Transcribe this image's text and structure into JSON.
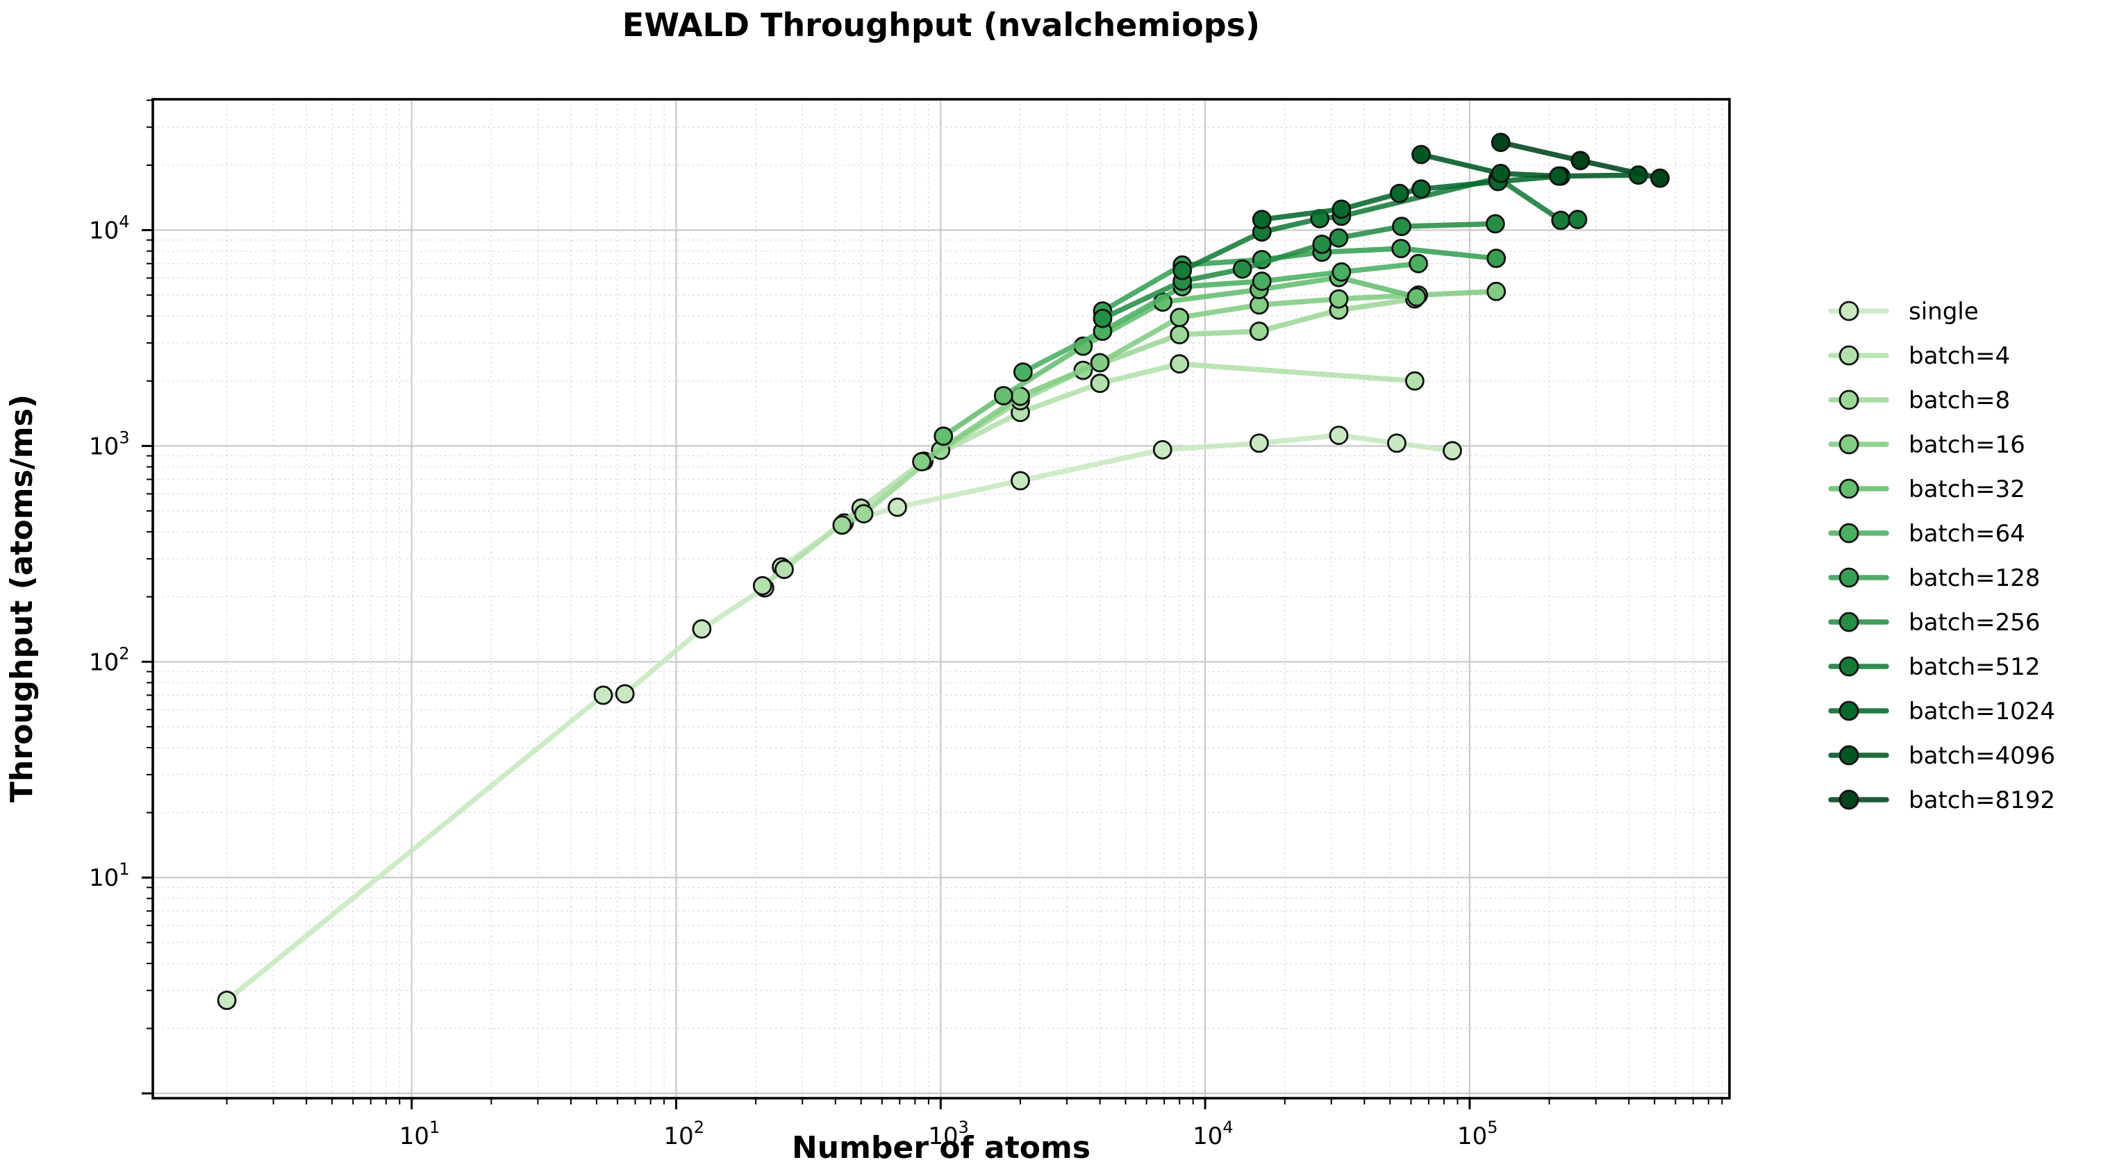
{
  "chart_data": {
    "type": "line",
    "title": "EWALD Throughput (nvalchemiops)",
    "xlabel": "Number of atoms",
    "ylabel": "Throughput (atoms/ms)",
    "x_scale": "log",
    "y_scale": "log",
    "xlim": [
      1.05,
      960000
    ],
    "ylim": [
      0.95,
      40400
    ],
    "x_tick_exponents": [
      1,
      2,
      3,
      4,
      5
    ],
    "y_tick_exponents": [
      1,
      2,
      3,
      4
    ],
    "grid": "major solid gray + minor dotted, log decades",
    "legend_position": "right of axes, frameless",
    "colors": {
      "grid_major": "#c9c9c9",
      "grid_minor": "#dadada",
      "spine": "#000000",
      "marker_edge": "#111111"
    },
    "series": [
      {
        "name": "single",
        "color": "#c7e8c0",
        "points": [
          [
            2,
            2.7
          ],
          [
            53,
            70
          ],
          [
            64,
            71
          ],
          [
            125,
            142
          ],
          [
            216,
            220
          ],
          [
            250,
            275
          ],
          [
            432,
            440
          ],
          [
            686,
            520
          ],
          [
            2000,
            690
          ],
          [
            6900,
            960
          ],
          [
            16000,
            1030
          ],
          [
            32000,
            1120
          ],
          [
            53000,
            1030
          ],
          [
            86000,
            950
          ]
        ]
      },
      {
        "name": "batch=4",
        "color": "#b3e0ac",
        "points": [
          [
            212,
            225
          ],
          [
            256,
            268
          ],
          [
            500,
            515
          ],
          [
            864,
            850
          ],
          [
            2000,
            1430
          ],
          [
            4000,
            1950
          ],
          [
            8000,
            2400
          ],
          [
            62000,
            2000
          ]
        ]
      },
      {
        "name": "batch=8",
        "color": "#9cd797",
        "points": [
          [
            424,
            430
          ],
          [
            512,
            485
          ],
          [
            1000,
            955
          ],
          [
            2000,
            1620
          ],
          [
            3456,
            2240
          ],
          [
            8000,
            3280
          ],
          [
            16000,
            3400
          ],
          [
            32000,
            4260
          ],
          [
            62000,
            4800
          ]
        ]
      },
      {
        "name": "batch=16",
        "color": "#82cc83",
        "points": [
          [
            848,
            845
          ],
          [
            2000,
            1700
          ],
          [
            4000,
            2430
          ],
          [
            8000,
            3940
          ],
          [
            16000,
            4500
          ],
          [
            32000,
            4800
          ],
          [
            64000,
            5000
          ],
          [
            126000,
            5200
          ]
        ]
      },
      {
        "name": "batch=32",
        "color": "#65bd6f",
        "points": [
          [
            1024,
            1110
          ],
          [
            1728,
            1710
          ],
          [
            3456,
            2900
          ],
          [
            6912,
            4640
          ],
          [
            16000,
            5300
          ],
          [
            32000,
            6030
          ],
          [
            63000,
            4900
          ]
        ]
      },
      {
        "name": "batch=64",
        "color": "#4aaf61",
        "points": [
          [
            2048,
            2200
          ],
          [
            4096,
            3400
          ],
          [
            8192,
            5470
          ],
          [
            16384,
            5800
          ],
          [
            32768,
            6400
          ],
          [
            64000,
            7000
          ]
        ]
      },
      {
        "name": "batch=128",
        "color": "#359f54",
        "points": [
          [
            4096,
            4220
          ],
          [
            8192,
            6890
          ],
          [
            16384,
            7300
          ],
          [
            27648,
            7900
          ],
          [
            55000,
            8220
          ],
          [
            126000,
            7400
          ]
        ]
      },
      {
        "name": "batch=256",
        "color": "#268d46",
        "points": [
          [
            4096,
            3900
          ],
          [
            8192,
            5800
          ],
          [
            13824,
            6600
          ],
          [
            27648,
            8600
          ],
          [
            32000,
            9200
          ],
          [
            55296,
            10400
          ],
          [
            125000,
            10700
          ]
        ]
      },
      {
        "name": "batch=512",
        "color": "#167b39",
        "points": [
          [
            8192,
            6500
          ],
          [
            16384,
            9800
          ],
          [
            27136,
            11300
          ],
          [
            32768,
            11600
          ],
          [
            128000,
            17400
          ],
          [
            221184,
            11100
          ],
          [
            256000,
            11200
          ]
        ]
      },
      {
        "name": "batch=1024",
        "color": "#07692d",
        "points": [
          [
            16384,
            11200
          ],
          [
            32768,
            12500
          ],
          [
            54272,
            14800
          ],
          [
            65536,
            15500
          ],
          [
            128000,
            16800
          ],
          [
            221184,
            17800
          ]
        ]
      },
      {
        "name": "batch=4096",
        "color": "#005723",
        "points": [
          [
            65536,
            22400
          ],
          [
            131072,
            18300
          ],
          [
            217088,
            17800
          ],
          [
            434176,
            18000
          ]
        ]
      },
      {
        "name": "batch=8192",
        "color": "#00441b",
        "points": [
          [
            131072,
            25500
          ],
          [
            262144,
            21000
          ],
          [
            524288,
            17400
          ]
        ]
      }
    ]
  }
}
